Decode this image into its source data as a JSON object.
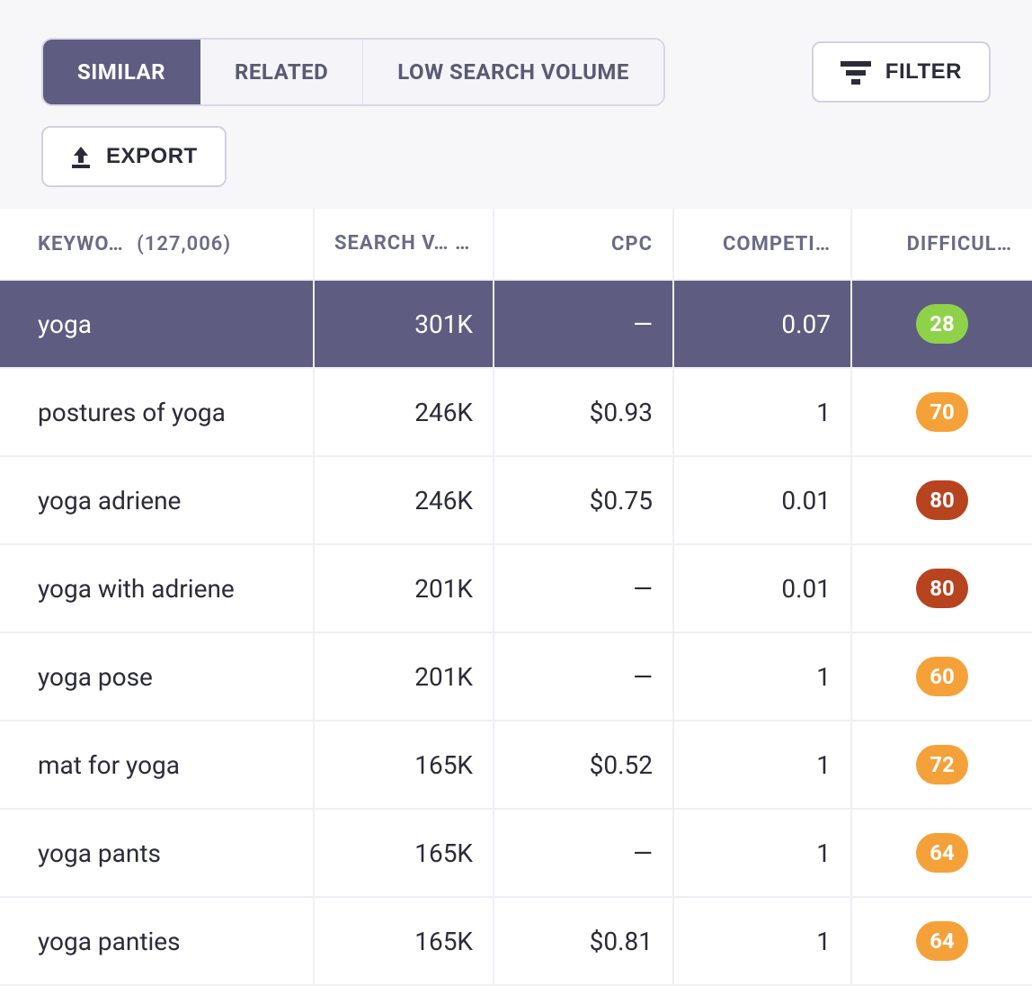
{
  "tabs": {
    "items": [
      {
        "label": "SIMILAR",
        "active": true
      },
      {
        "label": "RELATED",
        "active": false
      },
      {
        "label": "LOW SEARCH VOLUME",
        "active": false
      }
    ]
  },
  "buttons": {
    "filter": "FILTER",
    "export": "EXPORT"
  },
  "table": {
    "columns": {
      "keyword": {
        "label": "KEYWO…",
        "count": "(127,006)"
      },
      "volume": {
        "label": "SEARCH V…",
        "sorted": "desc"
      },
      "cpc": {
        "label": "CPC"
      },
      "competition": {
        "label": "COMPETI…"
      },
      "difficulty": {
        "label": "DIFFICUL…"
      }
    },
    "rows": [
      {
        "keyword": "yoga",
        "volume": "301K",
        "cpc": "—",
        "competition": "0.07",
        "difficulty": 28,
        "diff_color": "#8fd24a",
        "highlight": true
      },
      {
        "keyword": "postures of yoga",
        "volume": "246K",
        "cpc": "$0.93",
        "competition": "1",
        "difficulty": 70,
        "diff_color": "#f5a139",
        "highlight": false
      },
      {
        "keyword": "yoga adriene",
        "volume": "246K",
        "cpc": "$0.75",
        "competition": "0.01",
        "difficulty": 80,
        "diff_color": "#b8431f",
        "highlight": false
      },
      {
        "keyword": "yoga with adriene",
        "volume": "201K",
        "cpc": "—",
        "competition": "0.01",
        "difficulty": 80,
        "diff_color": "#b8431f",
        "highlight": false
      },
      {
        "keyword": "yoga pose",
        "volume": "201K",
        "cpc": "—",
        "competition": "1",
        "difficulty": 60,
        "diff_color": "#f5a139",
        "highlight": false
      },
      {
        "keyword": "mat for yoga",
        "volume": "165K",
        "cpc": "$0.52",
        "competition": "1",
        "difficulty": 72,
        "diff_color": "#f5a139",
        "highlight": false
      },
      {
        "keyword": "yoga pants",
        "volume": "165K",
        "cpc": "—",
        "competition": "1",
        "difficulty": 64,
        "diff_color": "#f5a139",
        "highlight": false
      },
      {
        "keyword": "yoga panties",
        "volume": "165K",
        "cpc": "$0.81",
        "competition": "1",
        "difficulty": 64,
        "diff_color": "#f5a139",
        "highlight": false
      }
    ]
  },
  "colors": {
    "primary_bg": "#5e5d81",
    "page_bg": "#f7f7fa",
    "border": "#d9d7e3",
    "header_text": "#6b6b86",
    "body_text": "#2b2b3a"
  }
}
